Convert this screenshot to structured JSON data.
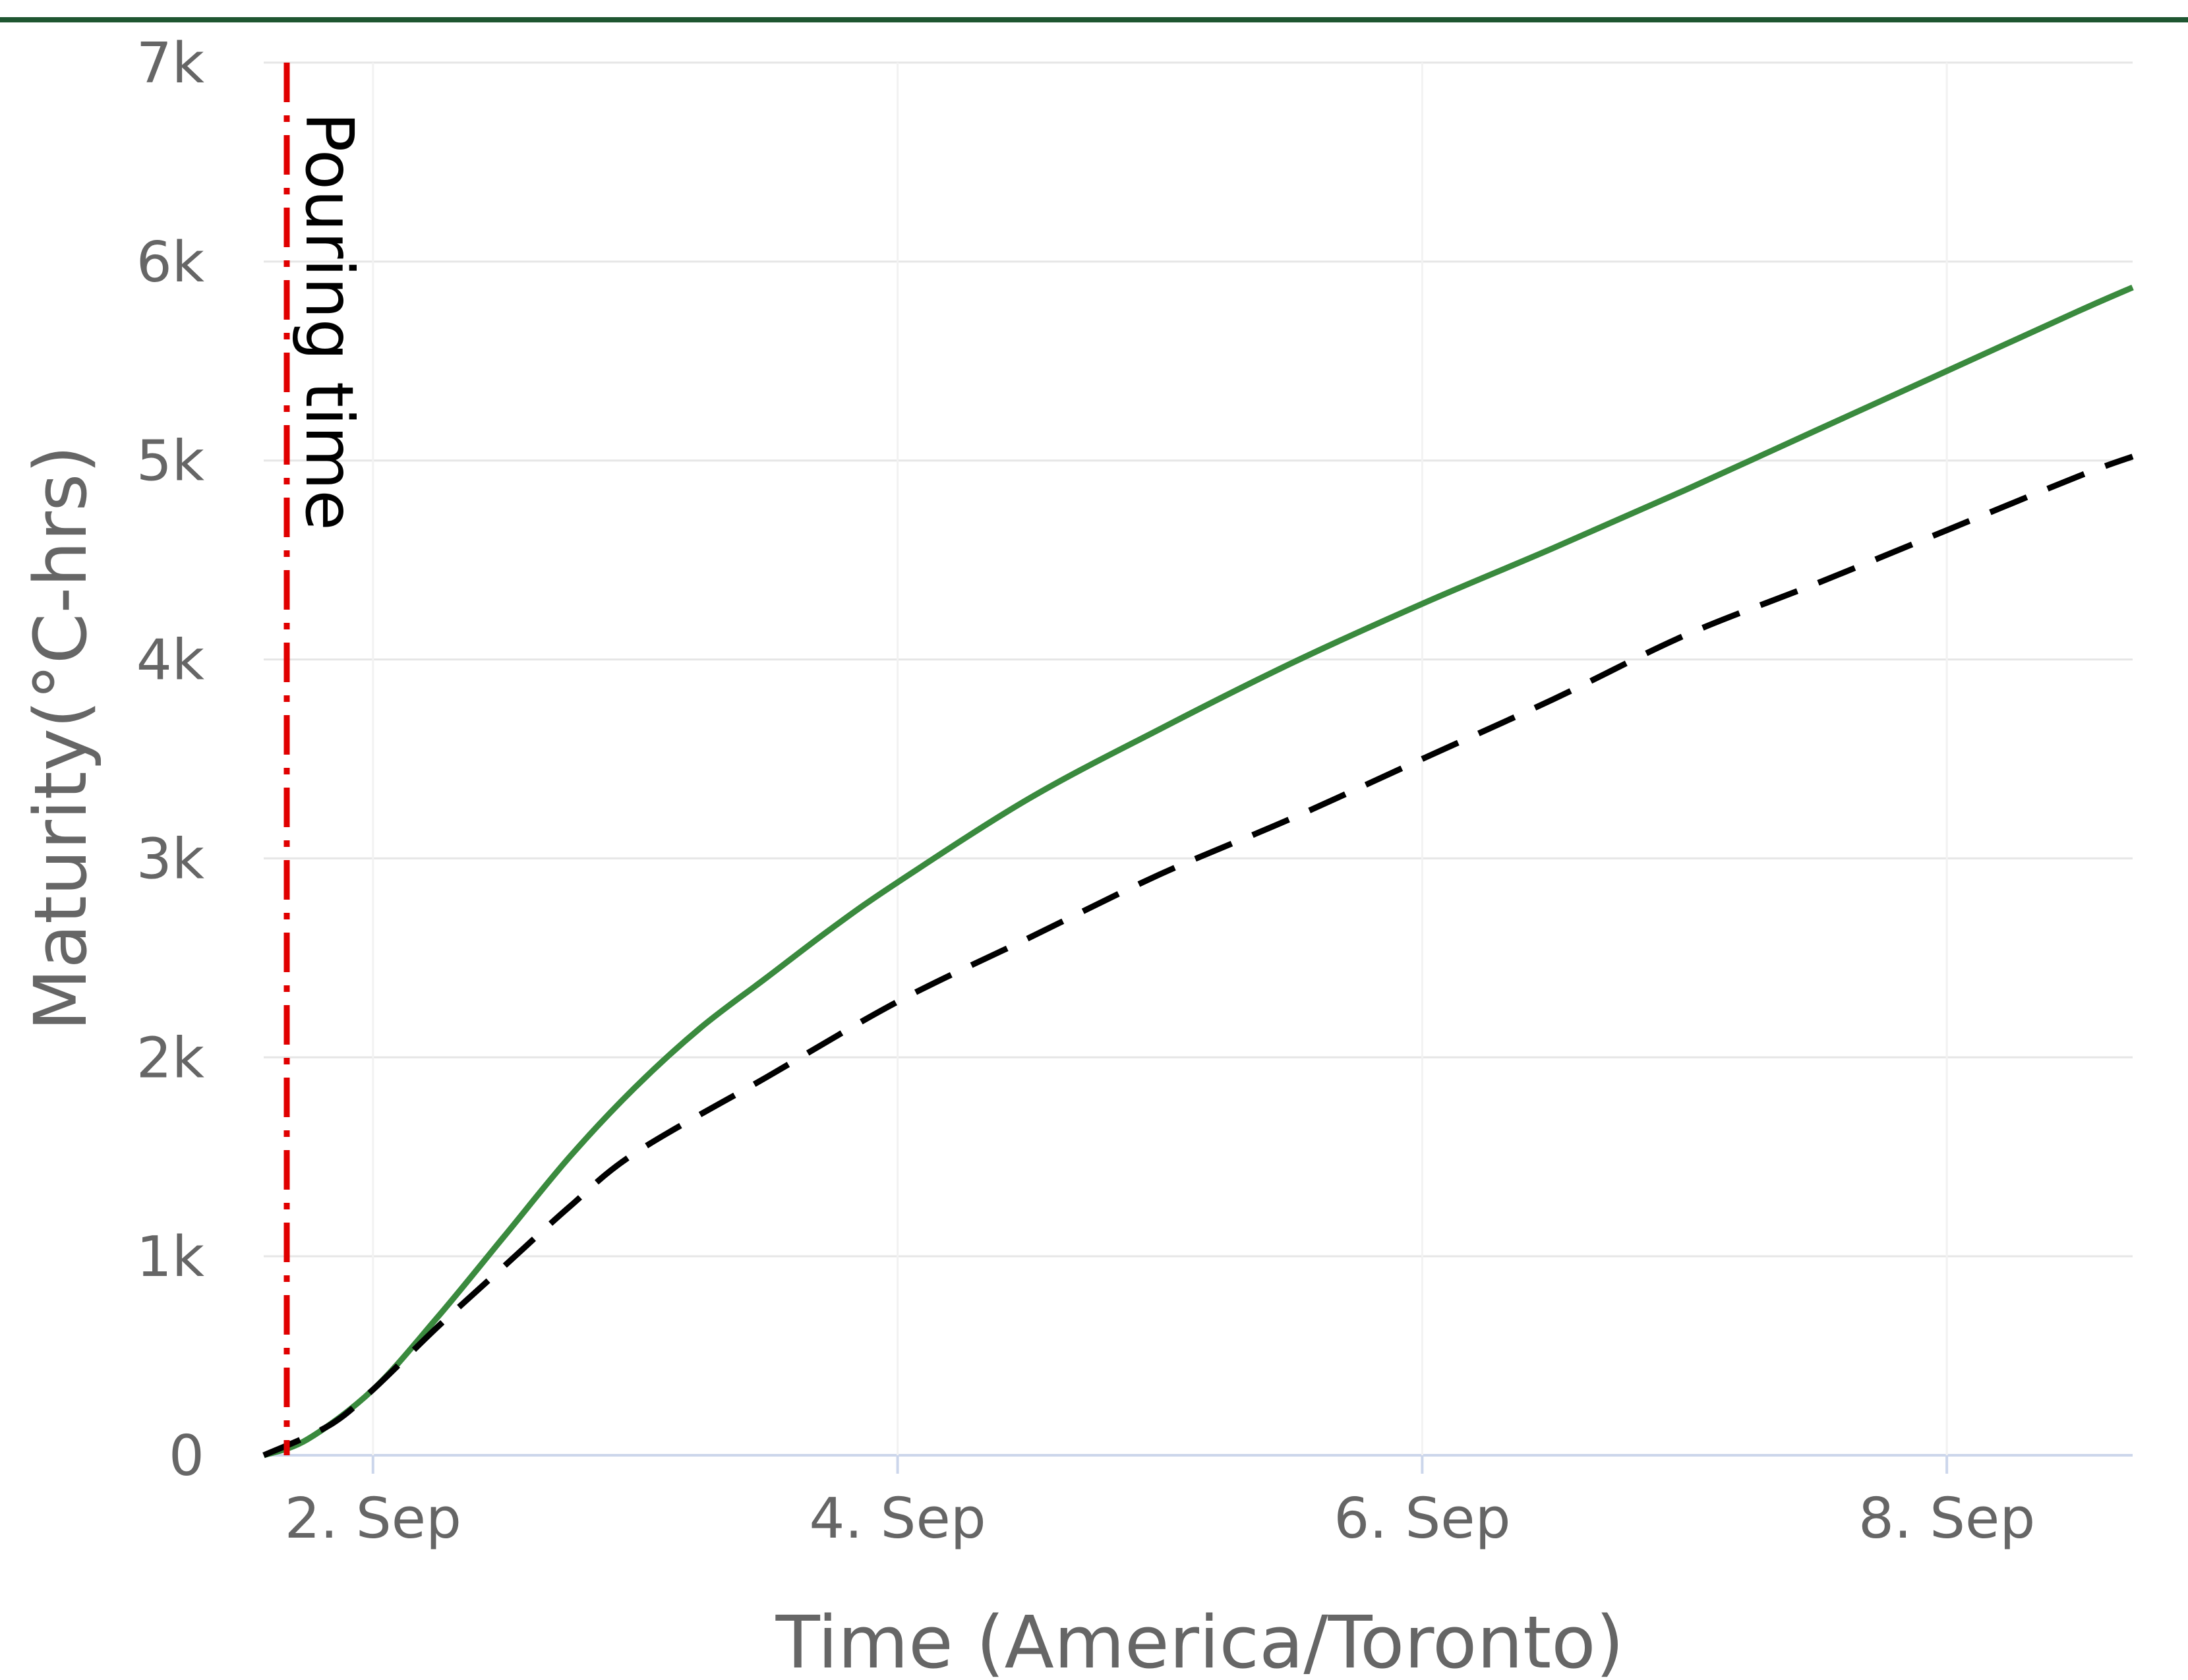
{
  "chart_data": {
    "type": "line",
    "title": "",
    "xlabel": "Time (America/Toronto)",
    "ylabel": "Maturity(°C-hrs)",
    "x_ticks": [
      {
        "date": "2023-09-02",
        "label": "2. Sep"
      },
      {
        "date": "2023-09-04",
        "label": "4. Sep"
      },
      {
        "date": "2023-09-06",
        "label": "6. Sep"
      },
      {
        "date": "2023-09-08",
        "label": "8. Sep"
      }
    ],
    "x_range": [
      "2023-09-01 14:00",
      "2023-09-08 17:00"
    ],
    "y_ticks": [
      {
        "value": 0,
        "label": "0"
      },
      {
        "value": 1000,
        "label": "1k"
      },
      {
        "value": 2000,
        "label": "2k"
      },
      {
        "value": 3000,
        "label": "3k"
      },
      {
        "value": 4000,
        "label": "4k"
      },
      {
        "value": 5000,
        "label": "5k"
      },
      {
        "value": 6000,
        "label": "6k"
      },
      {
        "value": 7000,
        "label": "7k"
      }
    ],
    "ylim": [
      0,
      7000
    ],
    "grid": "horizontal",
    "colors": {
      "top_rule": "#1e5631",
      "grid": "#e6e6e6",
      "axis": "#ccd6eb",
      "annotation": "#e00000"
    },
    "annotations": [
      {
        "type": "vertical-line",
        "x": "2023-09-01 14:00",
        "label": "Pouring time",
        "color": "#e00000",
        "style": "dash-dot"
      }
    ],
    "series": [
      {
        "color": "#3a8a3e",
        "style": "solid",
        "points": [
          [
            "2023-09-01 14:00",
            0
          ],
          [
            "2023-09-01 18:00",
            80
          ],
          [
            "2023-09-02 00:00",
            330
          ],
          [
            "2023-09-02 06:00",
            700
          ],
          [
            "2023-09-02 12:00",
            1100
          ],
          [
            "2023-09-02 18:00",
            1500
          ],
          [
            "2023-09-03 00:00",
            1850
          ],
          [
            "2023-09-03 06:00",
            2150
          ],
          [
            "2023-09-03 12:00",
            2400
          ],
          [
            "2023-09-03 18:00",
            2650
          ],
          [
            "2023-09-04 00:00",
            2880
          ],
          [
            "2023-09-04 12:00",
            3300
          ],
          [
            "2023-09-05 00:00",
            3650
          ],
          [
            "2023-09-05 12:00",
            3980
          ],
          [
            "2023-09-06 00:00",
            4280
          ],
          [
            "2023-09-06 12:00",
            4560
          ],
          [
            "2023-09-07 00:00",
            4850
          ],
          [
            "2023-09-07 12:00",
            5150
          ],
          [
            "2023-09-08 00:00",
            5450
          ],
          [
            "2023-09-08 12:00",
            5750
          ],
          [
            "2023-09-08 17:00",
            5870
          ]
        ]
      },
      {
        "color": "#000000",
        "style": "dashed",
        "points": [
          [
            "2023-09-01 14:00",
            0
          ],
          [
            "2023-09-01 20:00",
            150
          ],
          [
            "2023-09-02 00:00",
            330
          ],
          [
            "2023-09-02 06:00",
            650
          ],
          [
            "2023-09-02 12:00",
            950
          ],
          [
            "2023-09-02 18:00",
            1250
          ],
          [
            "2023-09-03 00:00",
            1520
          ],
          [
            "2023-09-03 12:00",
            1900
          ],
          [
            "2023-09-04 00:00",
            2280
          ],
          [
            "2023-09-04 12:00",
            2600
          ],
          [
            "2023-09-05 00:00",
            2920
          ],
          [
            "2023-09-05 12:00",
            3200
          ],
          [
            "2023-09-06 00:00",
            3500
          ],
          [
            "2023-09-06 12:00",
            3800
          ],
          [
            "2023-09-07 00:00",
            4120
          ],
          [
            "2023-09-07 12:00",
            4380
          ],
          [
            "2023-09-08 00:00",
            4650
          ],
          [
            "2023-09-08 12:00",
            4920
          ],
          [
            "2023-09-08 17:00",
            5020
          ]
        ]
      }
    ]
  }
}
